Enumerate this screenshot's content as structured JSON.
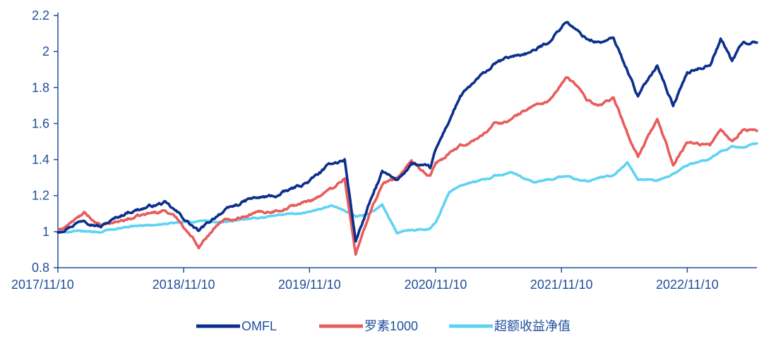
{
  "chart_data": {
    "type": "line",
    "title": "",
    "xlabel": "",
    "ylabel": "",
    "x_ticks": [
      "2017/11/10",
      "2018/11/10",
      "2019/11/10",
      "2020/11/10",
      "2021/11/10",
      "2022/11/10"
    ],
    "x_range": [
      "2017/11/10",
      "2023/05/31"
    ],
    "y_ticks": [
      "0.8",
      "1",
      "1.2",
      "1.4",
      "1.6",
      "1.8",
      "2",
      "2.2"
    ],
    "ylim": [
      0.8,
      2.2
    ],
    "grid": false,
    "legend_position": "bottom",
    "series": [
      {
        "name": "OMFL",
        "color": "#0b2f8c",
        "points": [
          [
            "2017/11/10",
            1.0
          ],
          [
            "2018/01/25",
            1.07
          ],
          [
            "2018/03/15",
            1.03
          ],
          [
            "2018/06/01",
            1.11
          ],
          [
            "2018/09/15",
            1.16
          ],
          [
            "2018/10/25",
            1.1
          ],
          [
            "2018/12/24",
            1.0
          ],
          [
            "2019/02/20",
            1.1
          ],
          [
            "2019/05/20",
            1.18
          ],
          [
            "2019/08/10",
            1.2
          ],
          [
            "2019/11/10",
            1.28
          ],
          [
            "2020/01/15",
            1.38
          ],
          [
            "2020/02/20",
            1.4
          ],
          [
            "2020/03/23",
            0.95
          ],
          [
            "2020/05/01",
            1.15
          ],
          [
            "2020/06/08",
            1.33
          ],
          [
            "2020/07/20",
            1.28
          ],
          [
            "2020/09/01",
            1.38
          ],
          [
            "2020/10/25",
            1.35
          ],
          [
            "2020/11/10",
            1.45
          ],
          [
            "2021/01/20",
            1.75
          ],
          [
            "2021/03/15",
            1.85
          ],
          [
            "2021/05/01",
            1.93
          ],
          [
            "2021/06/15",
            1.97
          ],
          [
            "2021/08/20",
            2.0
          ],
          [
            "2021/10/01",
            2.05
          ],
          [
            "2021/11/25",
            2.17
          ],
          [
            "2021/12/20",
            2.12
          ],
          [
            "2022/01/25",
            2.07
          ],
          [
            "2022/03/01",
            2.05
          ],
          [
            "2022/04/10",
            2.07
          ],
          [
            "2022/05/20",
            1.9
          ],
          [
            "2022/06/20",
            1.75
          ],
          [
            "2022/08/15",
            1.93
          ],
          [
            "2022/09/30",
            1.7
          ],
          [
            "2022/11/10",
            1.88
          ],
          [
            "2023/01/15",
            1.93
          ],
          [
            "2023/02/15",
            2.07
          ],
          [
            "2023/03/20",
            1.95
          ],
          [
            "2023/04/20",
            2.05
          ],
          [
            "2023/05/31",
            2.05
          ]
        ]
      },
      {
        "name": "罗素1000",
        "color": "#e85c5c",
        "points": [
          [
            "2017/11/10",
            1.0
          ],
          [
            "2018/01/25",
            1.1
          ],
          [
            "2018/03/15",
            1.03
          ],
          [
            "2018/06/01",
            1.07
          ],
          [
            "2018/09/15",
            1.12
          ],
          [
            "2018/10/25",
            1.07
          ],
          [
            "2018/12/24",
            0.92
          ],
          [
            "2019/02/20",
            1.05
          ],
          [
            "2019/05/20",
            1.1
          ],
          [
            "2019/08/10",
            1.12
          ],
          [
            "2019/11/10",
            1.17
          ],
          [
            "2020/01/15",
            1.24
          ],
          [
            "2020/02/20",
            1.3
          ],
          [
            "2020/03/23",
            0.87
          ],
          [
            "2020/05/01",
            1.1
          ],
          [
            "2020/06/08",
            1.26
          ],
          [
            "2020/07/20",
            1.3
          ],
          [
            "2020/09/01",
            1.38
          ],
          [
            "2020/10/25",
            1.3
          ],
          [
            "2020/11/10",
            1.38
          ],
          [
            "2021/01/20",
            1.47
          ],
          [
            "2021/03/15",
            1.52
          ],
          [
            "2021/05/01",
            1.6
          ],
          [
            "2021/06/15",
            1.62
          ],
          [
            "2021/08/20",
            1.7
          ],
          [
            "2021/10/01",
            1.72
          ],
          [
            "2021/11/25",
            1.85
          ],
          [
            "2021/12/20",
            1.82
          ],
          [
            "2022/01/25",
            1.73
          ],
          [
            "2022/03/01",
            1.7
          ],
          [
            "2022/04/10",
            1.75
          ],
          [
            "2022/05/20",
            1.55
          ],
          [
            "2022/06/20",
            1.42
          ],
          [
            "2022/08/15",
            1.62
          ],
          [
            "2022/09/30",
            1.38
          ],
          [
            "2022/11/10",
            1.5
          ],
          [
            "2023/01/15",
            1.48
          ],
          [
            "2023/02/15",
            1.57
          ],
          [
            "2023/03/20",
            1.5
          ],
          [
            "2023/04/20",
            1.57
          ],
          [
            "2023/05/31",
            1.56
          ]
        ]
      },
      {
        "name": "超额收益净值",
        "color": "#5fd3f3",
        "points": [
          [
            "2017/11/10",
            1.0
          ],
          [
            "2018/03/15",
            1.0
          ],
          [
            "2018/06/01",
            1.03
          ],
          [
            "2018/09/15",
            1.04
          ],
          [
            "2018/12/24",
            1.06
          ],
          [
            "2019/02/20",
            1.05
          ],
          [
            "2019/05/20",
            1.07
          ],
          [
            "2019/08/10",
            1.09
          ],
          [
            "2019/11/10",
            1.11
          ],
          [
            "2020/01/15",
            1.14
          ],
          [
            "2020/02/20",
            1.11
          ],
          [
            "2020/03/23",
            1.08
          ],
          [
            "2020/05/01",
            1.1
          ],
          [
            "2020/06/08",
            1.15
          ],
          [
            "2020/07/20",
            0.99
          ],
          [
            "2020/09/01",
            1.01
          ],
          [
            "2020/10/25",
            1.02
          ],
          [
            "2020/11/10",
            1.05
          ],
          [
            "2020/12/20",
            1.22
          ],
          [
            "2021/01/20",
            1.26
          ],
          [
            "2021/03/15",
            1.28
          ],
          [
            "2021/05/01",
            1.31
          ],
          [
            "2021/06/15",
            1.33
          ],
          [
            "2021/08/20",
            1.27
          ],
          [
            "2021/10/01",
            1.29
          ],
          [
            "2021/11/25",
            1.31
          ],
          [
            "2021/12/20",
            1.29
          ],
          [
            "2022/01/25",
            1.28
          ],
          [
            "2022/03/01",
            1.3
          ],
          [
            "2022/04/10",
            1.31
          ],
          [
            "2022/05/20",
            1.38
          ],
          [
            "2022/06/20",
            1.29
          ],
          [
            "2022/08/15",
            1.28
          ],
          [
            "2022/09/30",
            1.32
          ],
          [
            "2022/11/10",
            1.37
          ],
          [
            "2023/01/15",
            1.4
          ],
          [
            "2023/02/15",
            1.44
          ],
          [
            "2023/03/20",
            1.47
          ],
          [
            "2023/04/20",
            1.47
          ],
          [
            "2023/05/31",
            1.49
          ]
        ]
      }
    ]
  }
}
